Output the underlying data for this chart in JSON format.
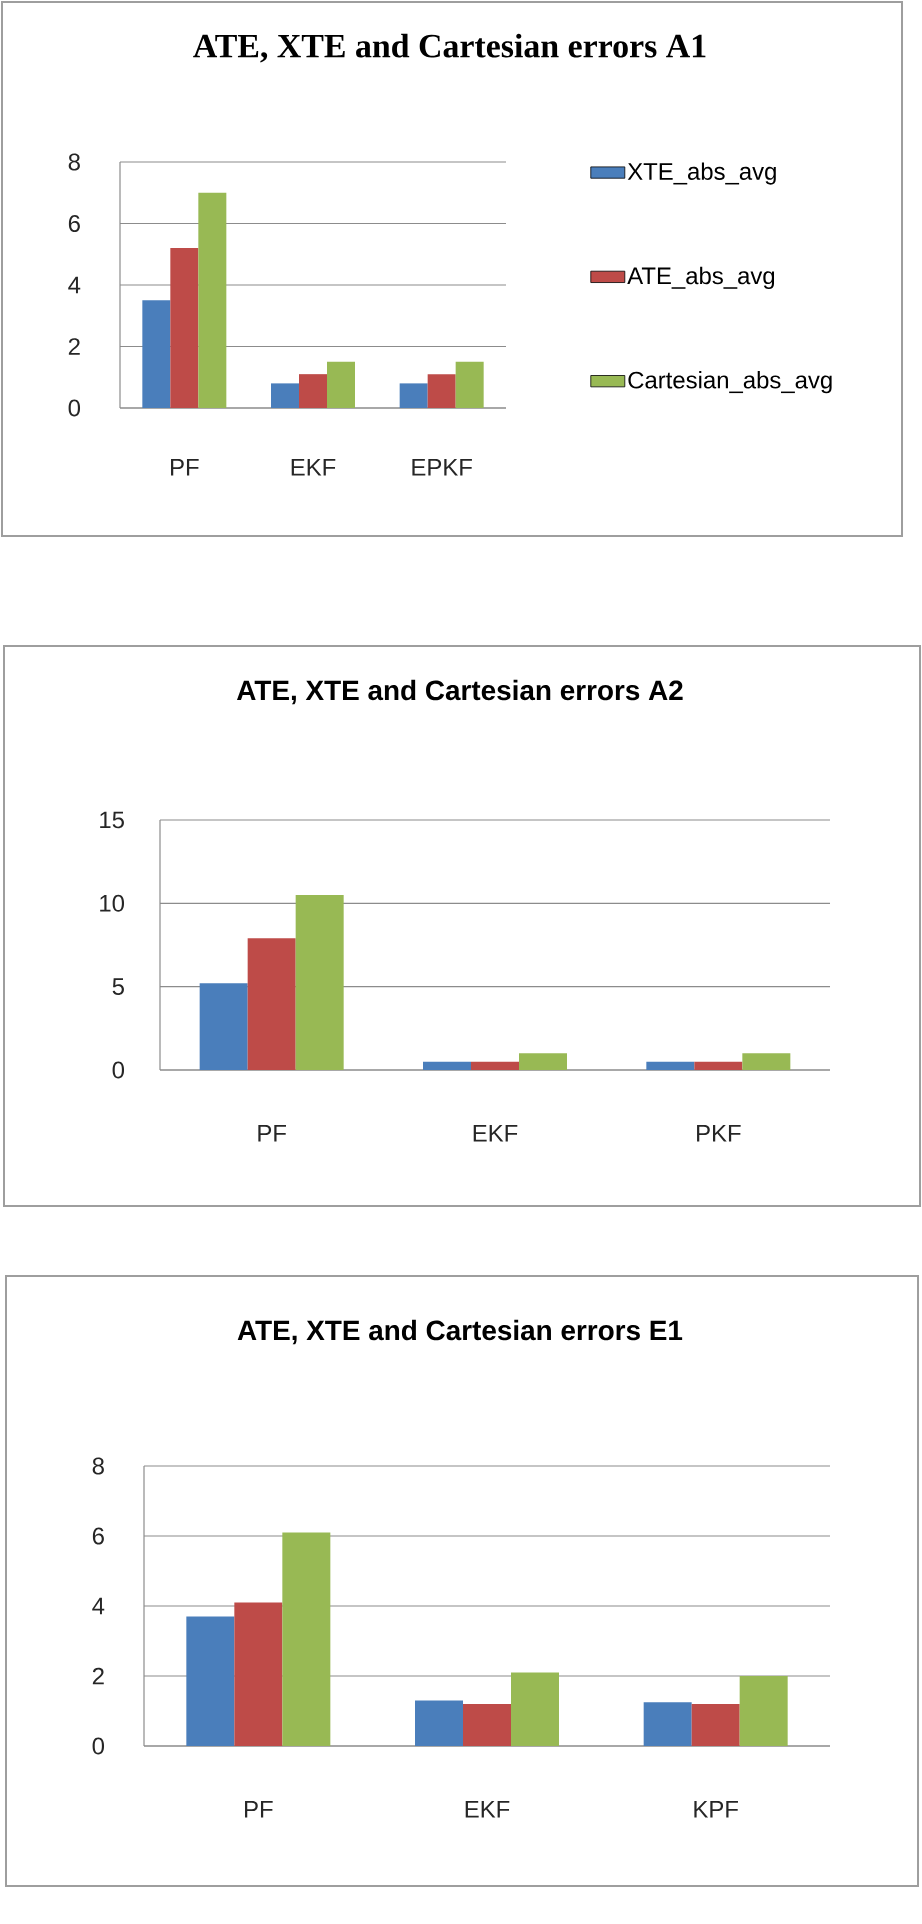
{
  "chart_data": [
    {
      "type": "bar",
      "title": "ATE, XTE and Cartesian errors A1",
      "categories": [
        "PF",
        "EKF",
        "EPKF"
      ],
      "series": [
        {
          "name": "XTE_abs_avg",
          "color": "#4a7ebb",
          "values": [
            3.5,
            0.8,
            0.8
          ]
        },
        {
          "name": "ATE_abs_avg",
          "color": "#be4b48",
          "values": [
            5.2,
            1.1,
            1.1
          ]
        },
        {
          "name": "Cartesian_abs_avg",
          "color": "#98b954",
          "values": [
            7.0,
            1.5,
            1.5
          ]
        }
      ],
      "ylim": [
        0,
        8
      ],
      "yticks": [
        0,
        2,
        4,
        6,
        8
      ],
      "grid": "y",
      "legend": "right"
    },
    {
      "type": "bar",
      "title": "ATE, XTE and Cartesian errors A2",
      "categories": [
        "PF",
        "EKF",
        "PKF"
      ],
      "series": [
        {
          "color": "#4a7ebb",
          "values": [
            5.2,
            0.5,
            0.5
          ]
        },
        {
          "color": "#be4b48",
          "values": [
            7.9,
            0.5,
            0.5
          ]
        },
        {
          "color": "#98b954",
          "values": [
            10.5,
            1.0,
            1.0
          ]
        }
      ],
      "ylim": [
        0,
        15
      ],
      "yticks": [
        0,
        5,
        10,
        15
      ],
      "grid": "y"
    },
    {
      "type": "bar",
      "title": "ATE, XTE and Cartesian errors E1",
      "categories": [
        "PF",
        "EKF",
        "KPF"
      ],
      "series": [
        {
          "color": "#4a7ebb",
          "values": [
            3.7,
            1.3,
            1.25
          ]
        },
        {
          "color": "#be4b48",
          "values": [
            4.1,
            1.2,
            1.2
          ]
        },
        {
          "color": "#98b954",
          "values": [
            6.1,
            2.1,
            2.0
          ]
        }
      ],
      "ylim": [
        0,
        8
      ],
      "yticks": [
        0,
        2,
        4,
        6,
        8
      ],
      "grid": "y"
    }
  ]
}
